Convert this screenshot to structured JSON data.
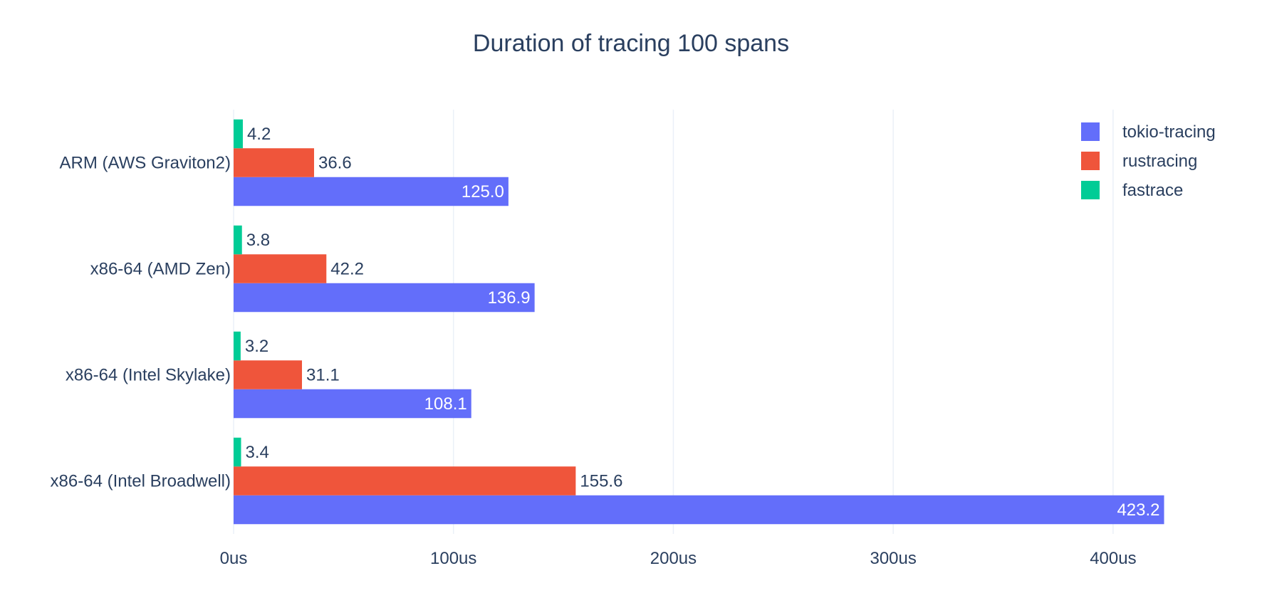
{
  "chart_data": {
    "type": "bar",
    "orientation": "horizontal",
    "title": "Duration of tracing 100 spans",
    "xlabel": "",
    "ylabel": "",
    "xlim": [
      0,
      424
    ],
    "x_ticks": [
      0,
      100,
      200,
      300,
      400
    ],
    "x_tick_labels": [
      "0us",
      "100us",
      "200us",
      "300us",
      "400us"
    ],
    "grid": "vertical",
    "legend_position": "top-right",
    "categories": [
      "ARM (AWS Graviton2)",
      "x86-64 (AMD Zen)",
      "x86-64 (Intel Skylake)",
      "x86-64 (Intel Broadwell)"
    ],
    "series": [
      {
        "name": "tokio-tracing",
        "color": "#636efa",
        "values": [
          125.0,
          136.9,
          108.1,
          423.2
        ],
        "labels": [
          "125.0",
          "136.9",
          "108.1",
          "423.2"
        ],
        "label_position": "inside"
      },
      {
        "name": "rustracing",
        "color": "#ef553b",
        "values": [
          36.6,
          42.2,
          31.1,
          155.6
        ],
        "labels": [
          "36.6",
          "42.2",
          "31.1",
          "155.6"
        ],
        "label_position": "outside"
      },
      {
        "name": "fastrace",
        "color": "#00cc96",
        "values": [
          4.2,
          3.8,
          3.2,
          3.4
        ],
        "labels": [
          "4.2",
          "3.8",
          "3.2",
          "3.4"
        ],
        "label_position": "outside"
      }
    ]
  }
}
